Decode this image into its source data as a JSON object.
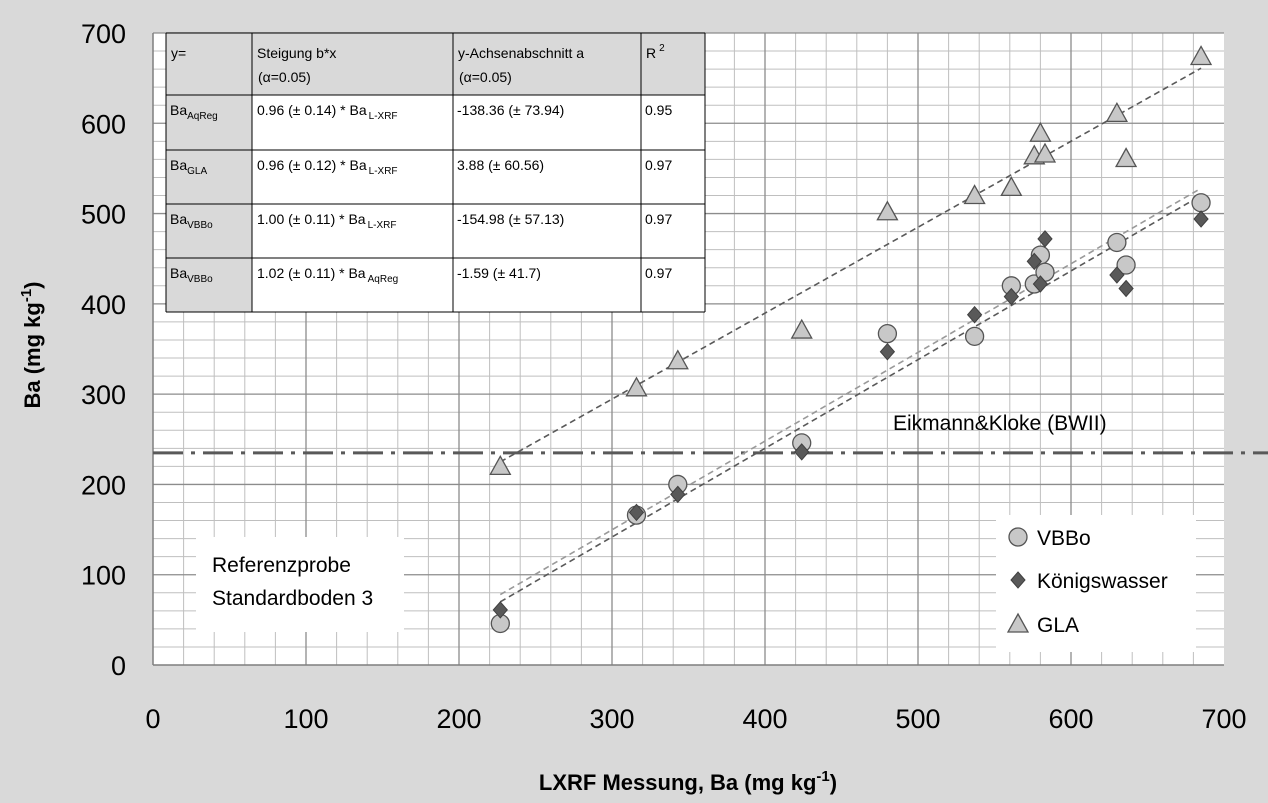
{
  "chart_data": {
    "type": "scatter",
    "xlabel": "LXRF Messung,  Ba (mg kg",
    "xlabel_sup": "-1",
    "xlabel_end": ")",
    "ylabel": "Ba (mg kg",
    "ylabel_sup": "-1",
    "ylabel_end": ")",
    "xlim": [
      0,
      700
    ],
    "ylim": [
      0,
      700
    ],
    "x_ticks": [
      0,
      100,
      200,
      300,
      400,
      500,
      600,
      700
    ],
    "y_ticks": [
      0,
      100,
      200,
      300,
      400,
      500,
      600,
      700
    ],
    "grid": true,
    "series": [
      {
        "name": "VBBo",
        "marker": "circle",
        "color": "#c8c8c8",
        "x": [
          227,
          316,
          343,
          424,
          480,
          537,
          561,
          576,
          580,
          583,
          630,
          636,
          685
        ],
        "y": [
          46,
          166,
          200,
          246,
          367,
          364,
          420,
          422,
          454,
          435,
          468,
          443,
          512
        ],
        "trend": [
          [
            227,
            78
          ],
          [
            685,
            528
          ]
        ]
      },
      {
        "name": "Königswasser",
        "marker": "diamond",
        "color": "#595959",
        "x": [
          227,
          316,
          343,
          424,
          480,
          537,
          561,
          576,
          580,
          583,
          630,
          636,
          685
        ],
        "y": [
          61,
          169,
          189,
          236,
          347,
          388,
          408,
          447,
          422,
          472,
          432,
          417,
          494
        ],
        "trend": [
          [
            227,
            70
          ],
          [
            685,
            520
          ]
        ]
      },
      {
        "name": "GLA",
        "marker": "triangle",
        "color": "#c8c8c8",
        "x": [
          227,
          316,
          343,
          424,
          480,
          537,
          561,
          576,
          580,
          583,
          630,
          636,
          685
        ],
        "y": [
          220,
          307,
          337,
          371,
          502,
          520,
          529,
          564,
          589,
          566,
          611,
          561,
          674
        ],
        "trend": [
          [
            227,
            225
          ],
          [
            685,
            661
          ]
        ]
      }
    ],
    "reference_line": {
      "y": 235,
      "label": "Eikmann&Kloke (BWII)"
    },
    "note": [
      "Referenzprobe",
      "Standardboden 3"
    ],
    "legend_position": "bottom-right",
    "table": {
      "headers": [
        {
          "main": "y="
        },
        {
          "main": "Steigung b*x",
          "second": "(α=0.05)"
        },
        {
          "main": "y-Achsenabschnitt a",
          "second": "(α=0.05)"
        },
        {
          "main": "R",
          "sup": "2"
        }
      ],
      "rows": [
        {
          "y_main": "Ba",
          "y_sub": "AqReg",
          "slope": "0.96 (± 0.14) * Ba",
          "slope_sub": "L-XRF",
          "intercept": "-138.36 (± 73.94)",
          "r2": "0.95"
        },
        {
          "y_main": "Ba",
          "y_sub": "GLA",
          "slope": "0.96 (± 0.12) * Ba",
          "slope_sub": "L-XRF",
          "intercept": " 3.88 (± 60.56)",
          "r2": "0.97"
        },
        {
          "y_main": "Ba",
          "y_sub": "VBBo",
          "slope": "1.00 (± 0.11) * Ba",
          "slope_sub": "L-XRF",
          "intercept": "-154.98 (± 57.13)",
          "r2": "0.97"
        },
        {
          "y_main": "Ba",
          "y_sub": "VBBo",
          "slope": "1.02 (± 0.11) * Ba",
          "slope_sub": "AqReg",
          "intercept": "-1.59 (± 41.7)",
          "r2": "0.97"
        }
      ]
    }
  }
}
